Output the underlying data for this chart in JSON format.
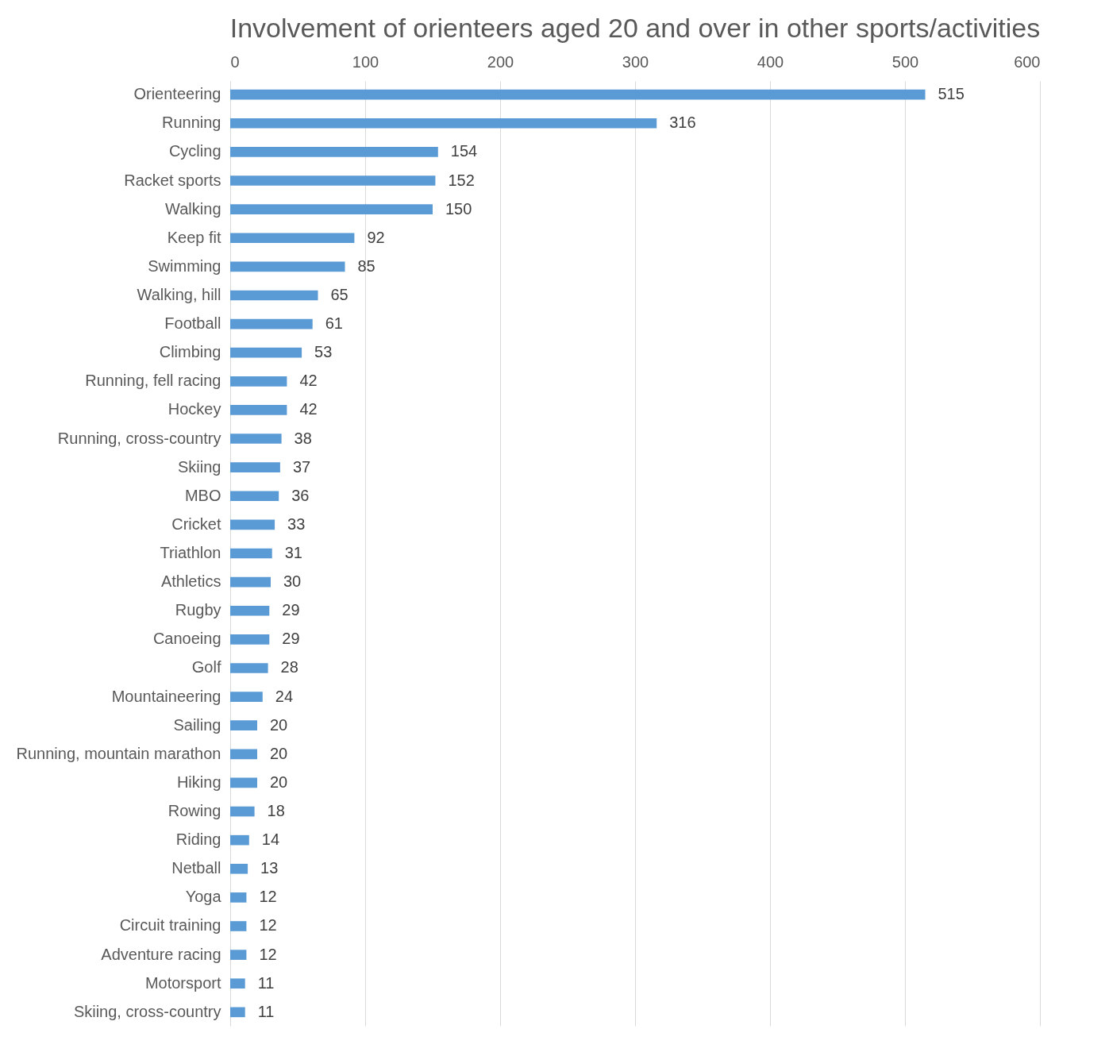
{
  "chart_data": {
    "type": "bar",
    "orientation": "horizontal",
    "title": "Involvement of orienteers aged 20 and over in other sports/activities",
    "categories": [
      "Orienteering",
      "Running",
      "Cycling",
      "Racket sports",
      "Walking",
      "Keep fit",
      "Swimming",
      "Walking, hill",
      "Football",
      "Climbing",
      "Running, fell racing",
      "Hockey",
      "Running, cross-country",
      "Skiing",
      "MBO",
      "Cricket",
      "Triathlon",
      "Athletics",
      "Rugby",
      "Canoeing",
      "Golf",
      "Mountaineering",
      "Sailing",
      "Running, mountain marathon",
      "Hiking",
      "Rowing",
      "Riding",
      "Netball",
      "Yoga",
      "Circuit training",
      "Adventure racing",
      "Motorsport",
      "Skiing, cross-country"
    ],
    "values": [
      515,
      316,
      154,
      152,
      150,
      92,
      85,
      65,
      61,
      53,
      42,
      42,
      38,
      37,
      36,
      33,
      31,
      30,
      29,
      29,
      28,
      24,
      20,
      20,
      20,
      18,
      14,
      13,
      12,
      12,
      12,
      11,
      11
    ],
    "color": "#5b9bd5",
    "xlim": [
      0,
      600
    ],
    "xticks": [
      0,
      100,
      200,
      300,
      400,
      500,
      600
    ],
    "grid": "x",
    "data_labels": true
  }
}
